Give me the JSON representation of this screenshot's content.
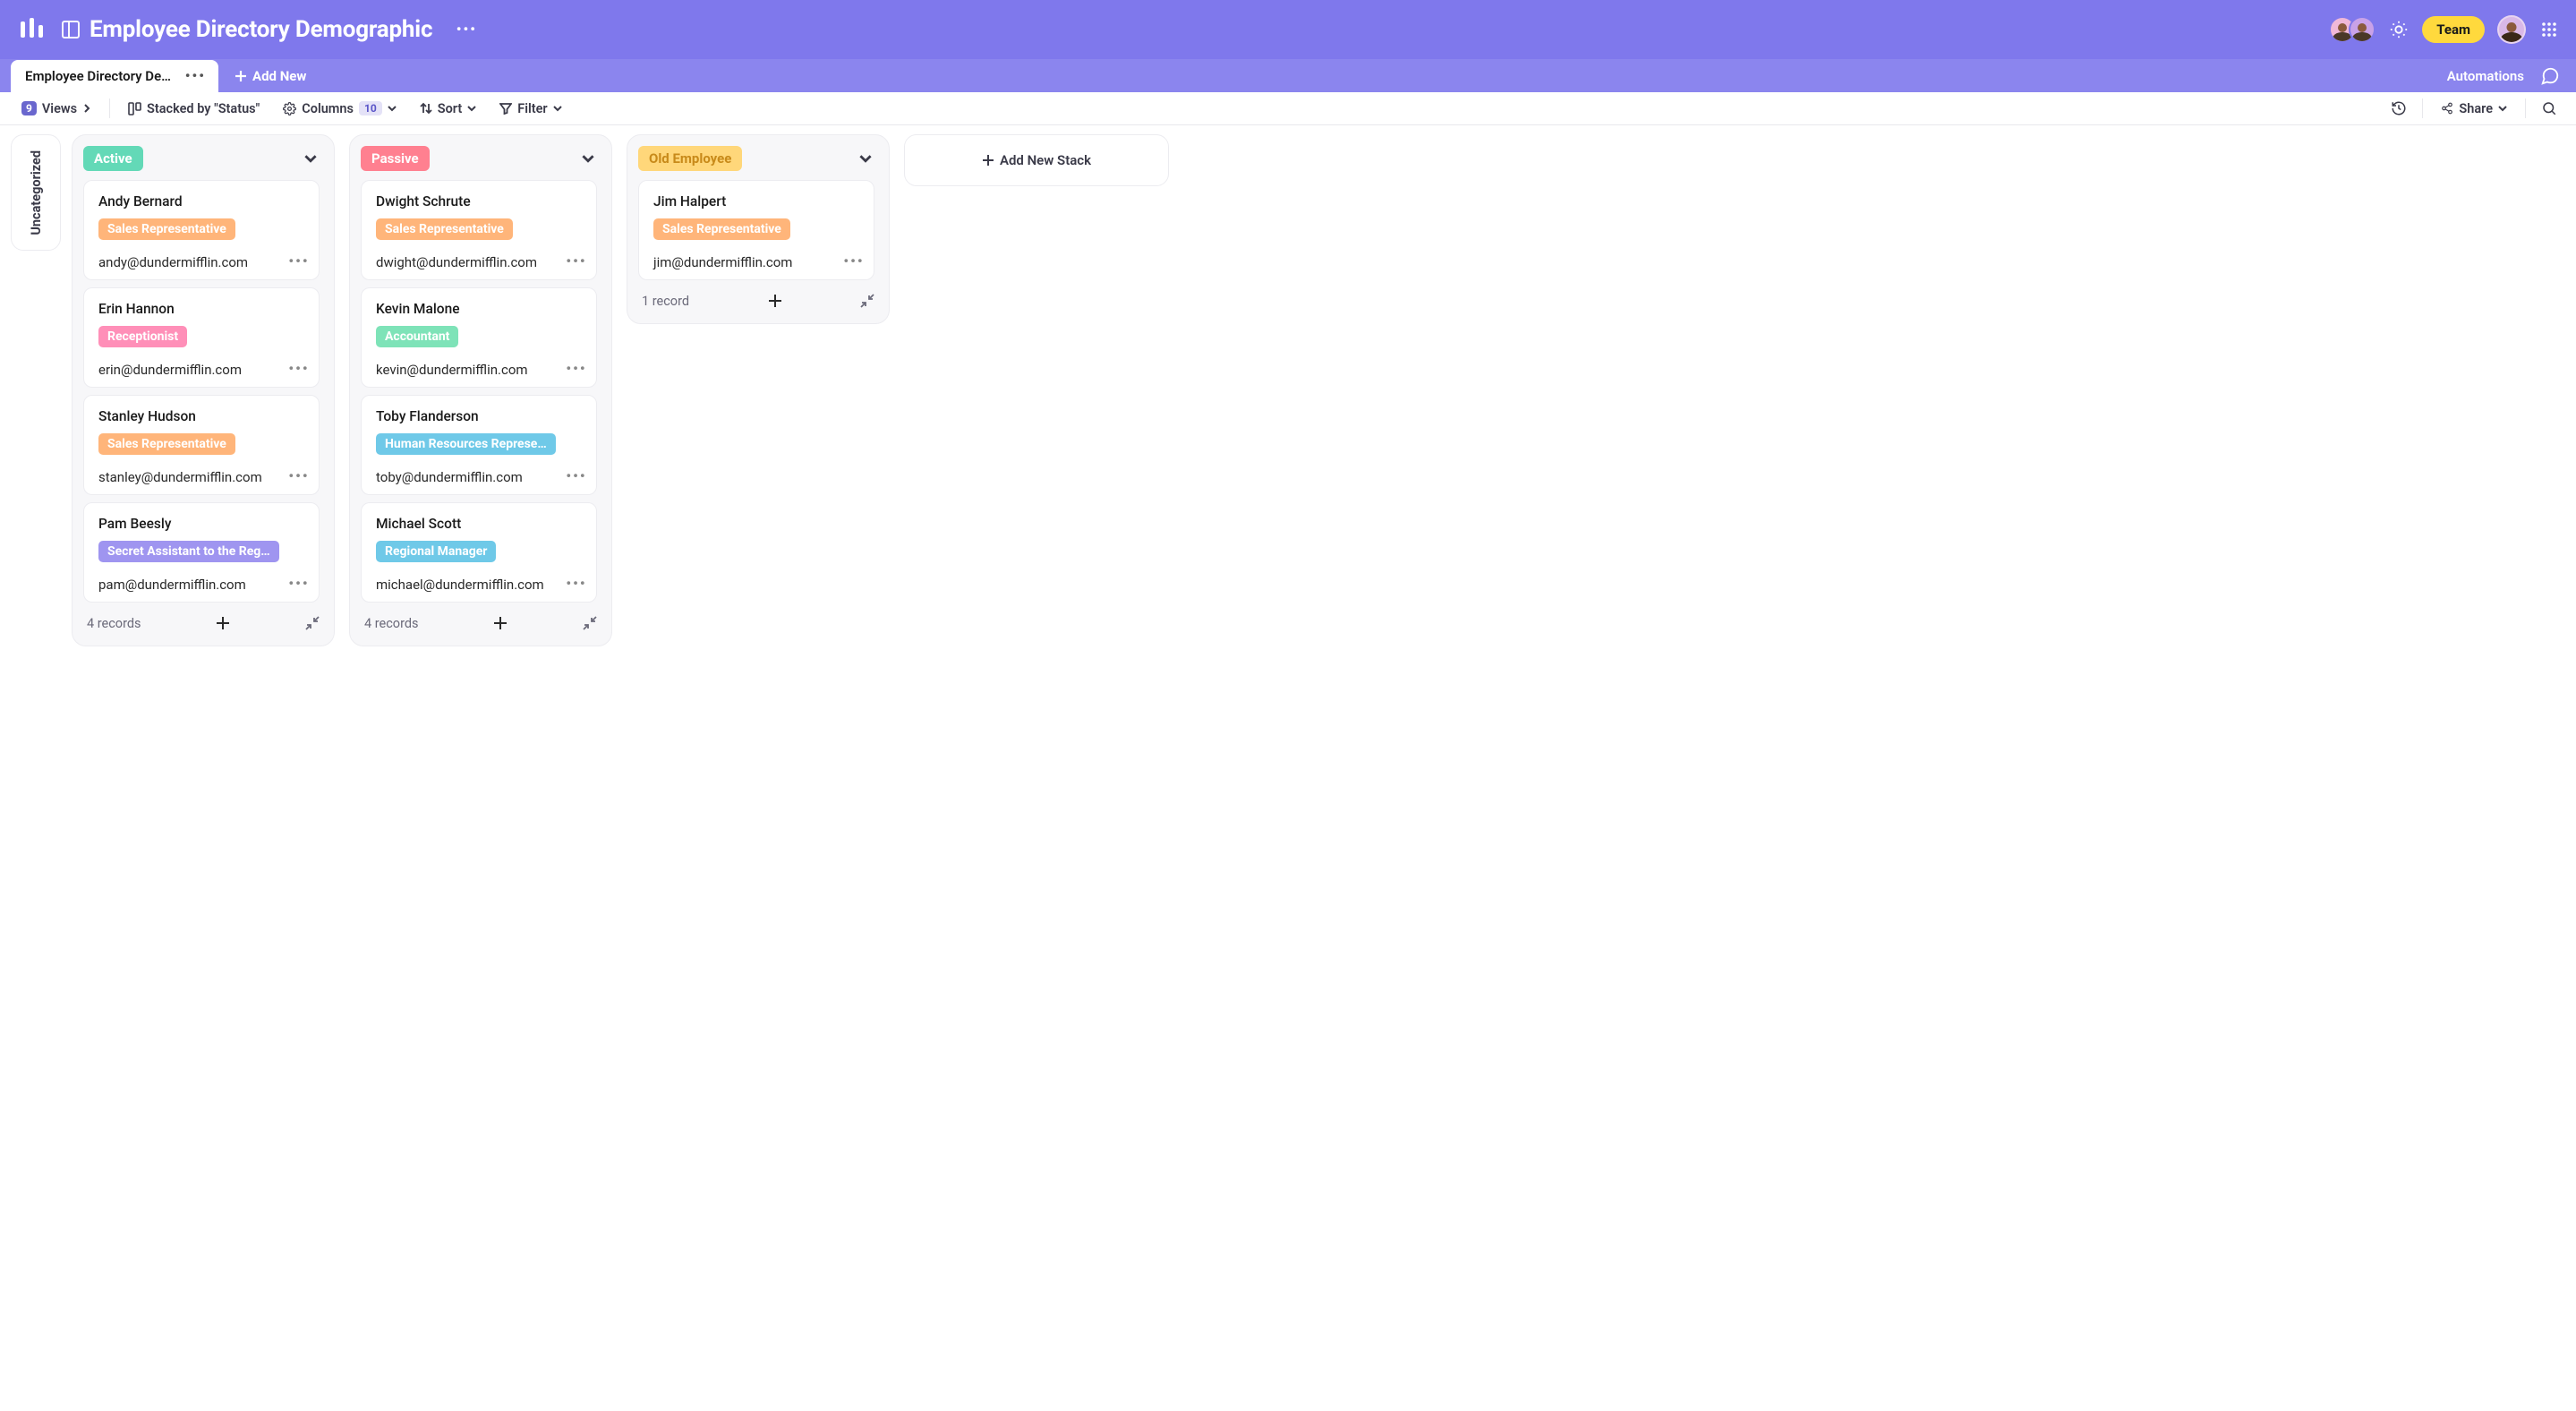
{
  "colors": {
    "header_bg": "#7f78ec",
    "tabbar_bg": "#8b85ee",
    "team_btn_bg": "#ffd93d",
    "views_badge_bg": "#6a67ce",
    "cols_badge_bg": "#e4e2f7",
    "stack_bg": "#f7f7f9"
  },
  "header": {
    "title": "Employee Directory Demographic",
    "team_label": "Team"
  },
  "tabbar": {
    "active_tab": "Employee Directory Demo…",
    "add_new": "Add New",
    "automations": "Automations"
  },
  "toolbar": {
    "views_label": "Views",
    "views_count": "9",
    "stacked_label": "Stacked by \"Status\"",
    "columns_label": "Columns",
    "columns_count": "10",
    "sort_label": "Sort",
    "filter_label": "Filter",
    "share_label": "Share"
  },
  "board": {
    "uncategorized_label": "Uncategorized",
    "add_stack_label": "Add New Stack"
  },
  "role_colors": {
    "Sales Representative": {
      "bg": "#ffb57a",
      "fg": "#ffffff"
    },
    "Receptionist": {
      "bg": "#ff8fb8",
      "fg": "#ffffff"
    },
    "Secret Assistant to the Reg…": {
      "bg": "#9f95f0",
      "fg": "#ffffff"
    },
    "Accountant": {
      "bg": "#7ee3b8",
      "fg": "#ffffff"
    },
    "Human Resources Represe…": {
      "bg": "#6fc9e8",
      "fg": "#ffffff"
    },
    "Regional Manager": {
      "bg": "#6fc9e8",
      "fg": "#ffffff"
    }
  },
  "stacks": [
    {
      "title": "Active",
      "chip_bg": "#63d9b7",
      "chip_fg": "#ffffff",
      "record_count": "4 records",
      "cards": [
        {
          "name": "Andy Bernard",
          "role": "Sales Representative",
          "email": "andy@dundermifflin.com"
        },
        {
          "name": "Erin Hannon",
          "role": "Receptionist",
          "email": "erin@dundermifflin.com"
        },
        {
          "name": "Stanley Hudson",
          "role": "Sales Representative",
          "email": "stanley@dundermifflin.com"
        },
        {
          "name": "Pam Beesly",
          "role": "Secret Assistant to the Reg…",
          "email": "pam@dundermifflin.com"
        }
      ]
    },
    {
      "title": "Passive",
      "chip_bg": "#ff8090",
      "chip_fg": "#ffffff",
      "record_count": "4 records",
      "cards": [
        {
          "name": "Dwight Schrute",
          "role": "Sales Representative",
          "email": "dwight@dundermifflin.com"
        },
        {
          "name": "Kevin Malone",
          "role": "Accountant",
          "email": "kevin@dundermifflin.com"
        },
        {
          "name": "Toby Flanderson",
          "role": "Human Resources Represe…",
          "email": "toby@dundermifflin.com"
        },
        {
          "name": "Michael Scott",
          "role": "Regional Manager",
          "email": "michael@dundermifflin.com"
        }
      ]
    },
    {
      "title": "Old Employee",
      "chip_bg": "#ffd77a",
      "chip_fg": "#c88a1a",
      "record_count": "1 record",
      "cards": [
        {
          "name": "Jim Halpert",
          "role": "Sales Representative",
          "email": "jim@dundermifflin.com"
        }
      ]
    }
  ]
}
